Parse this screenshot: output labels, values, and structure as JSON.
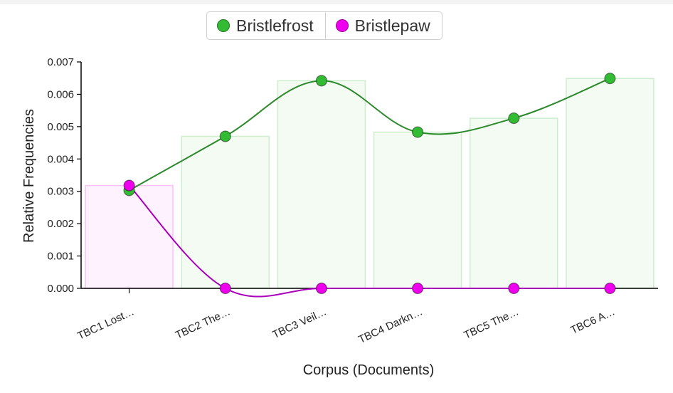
{
  "chart_data": {
    "type": "bar",
    "categories": [
      "TBC1 Lost…",
      "TBC2 The…",
      "TBC3 Veil…",
      "TBC4 Darkn…",
      "TBC5 The…",
      "TBC6 A…"
    ],
    "series": [
      {
        "name": "Bristlefrost",
        "color": "#33bb33",
        "line_color": "#2a8a2a",
        "values": [
          0.00303,
          0.0047,
          0.00642,
          0.00483,
          0.00526,
          0.00649
        ]
      },
      {
        "name": "Bristlepaw",
        "color": "#ee00ee",
        "line_color": "#aa00bb",
        "values": [
          0.00318,
          0.0,
          0.0,
          0.0,
          0.0,
          0.0
        ]
      }
    ],
    "xlabel": "Corpus (Documents)",
    "ylabel": "Relative Frequencies",
    "ylim": [
      0,
      0.007
    ],
    "yticks": [
      "0.000",
      "0.001",
      "0.002",
      "0.003",
      "0.004",
      "0.005",
      "0.006",
      "0.007"
    ],
    "legend_position": "top-center",
    "grid": false
  }
}
